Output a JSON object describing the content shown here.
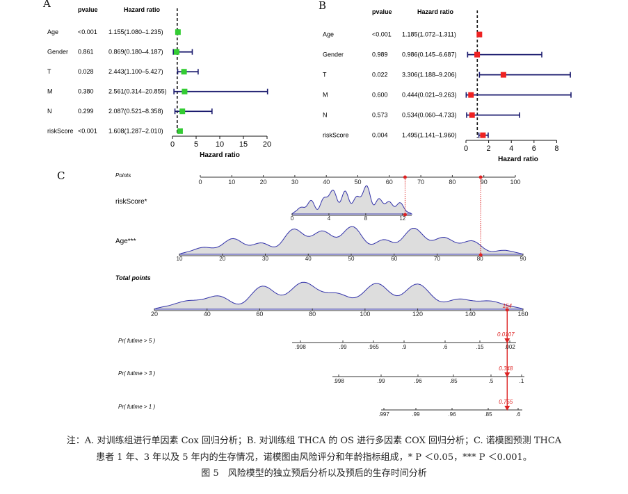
{
  "chart_data": [
    {
      "type": "forest",
      "panel_label": "A",
      "col_pvalue": "pvalue",
      "col_hr": "Hazard ratio",
      "xlabel": "Hazard ratio",
      "xlim": [
        0,
        20
      ],
      "xticks": [
        0,
        5,
        10,
        15,
        20
      ],
      "reference": 1,
      "marker_color": "#33cc33",
      "rows": [
        {
          "label": "Age",
          "p": "<0.001",
          "hr_text": "1.155(1.080–1.235)",
          "hr": 1.155,
          "lo": 1.08,
          "hi": 1.235
        },
        {
          "label": "Gender",
          "p": "0.861",
          "hr_text": "0.869(0.180–4.187)",
          "hr": 0.869,
          "lo": 0.18,
          "hi": 4.187
        },
        {
          "label": "T",
          "p": "0.028",
          "hr_text": "2.443(1.100–5.427)",
          "hr": 2.443,
          "lo": 1.1,
          "hi": 5.427
        },
        {
          "label": "M",
          "p": "0.380",
          "hr_text": "2.561(0.314–20.855)",
          "hr": 2.561,
          "lo": 0.314,
          "hi": 20.855
        },
        {
          "label": "N",
          "p": "0.299",
          "hr_text": "2.087(0.521–8.358)",
          "hr": 2.087,
          "lo": 0.521,
          "hi": 8.358
        },
        {
          "label": "riskScore",
          "p": "<0.001",
          "hr_text": "1.608(1.287–2.010)",
          "hr": 1.608,
          "lo": 1.287,
          "hi": 2.01
        }
      ]
    },
    {
      "type": "forest",
      "panel_label": "B",
      "col_pvalue": "pvalue",
      "col_hr": "Hazard ratio",
      "xlabel": "Hazard ratio",
      "xlim": [
        0,
        9.2
      ],
      "xticks": [
        0,
        2,
        4,
        6,
        8
      ],
      "reference": 1,
      "marker_color": "#ee2222",
      "rows": [
        {
          "label": "Age",
          "p": "<0.001",
          "hr_text": "1.185(1.072–1.311)",
          "hr": 1.185,
          "lo": 1.072,
          "hi": 1.311
        },
        {
          "label": "Gender",
          "p": "0.989",
          "hr_text": "0.986(0.145–6.687)",
          "hr": 0.986,
          "lo": 0.145,
          "hi": 6.687
        },
        {
          "label": "T",
          "p": "0.022",
          "hr_text": "3.306(1.188–9.206)",
          "hr": 3.306,
          "lo": 1.188,
          "hi": 9.206
        },
        {
          "label": "M",
          "p": "0.600",
          "hr_text": "0.444(0.021–9.263)",
          "hr": 0.444,
          "lo": 0.021,
          "hi": 9.263
        },
        {
          "label": "N",
          "p": "0.573",
          "hr_text": "0.534(0.060–4.733)",
          "hr": 0.534,
          "lo": 0.06,
          "hi": 4.733
        },
        {
          "label": "riskScore",
          "p": "0.004",
          "hr_text": "1.495(1.141–1.960)",
          "hr": 1.495,
          "lo": 1.141,
          "hi": 1.96
        }
      ]
    },
    {
      "type": "nomogram",
      "panel_label": "C",
      "fill_color": "#dddddd",
      "line_color": "#3333aa",
      "highlight_color": "#dd2222",
      "points_axis": {
        "label": "Points",
        "range": [
          0,
          100
        ],
        "ticks": [
          0,
          10,
          20,
          30,
          40,
          50,
          60,
          70,
          80,
          90,
          100
        ]
      },
      "variables": [
        {
          "label": "riskScore*",
          "range": [
            0,
            13
          ],
          "ticks": [
            0,
            4,
            8,
            12
          ],
          "selected_value": 12.6,
          "selected_points": 65
        },
        {
          "label": "Age***",
          "range": [
            10,
            90
          ],
          "ticks": [
            10,
            20,
            30,
            40,
            50,
            60,
            70,
            80,
            90
          ],
          "selected_value": 80,
          "selected_points": 89
        }
      ],
      "total_points": {
        "label": "Total points",
        "range": [
          20,
          160
        ],
        "ticks": [
          20,
          40,
          60,
          80,
          100,
          120,
          140,
          160
        ],
        "selected": 154,
        "selected_label": "154"
      },
      "probabilities": [
        {
          "label": "Pr( futime > 5 )",
          "ticks": [
            ".998",
            ".99",
            ".965",
            ".9",
            ".6",
            ".15",
            ".002"
          ],
          "selected_label": "0.0107"
        },
        {
          "label": "Pr( futime > 3 )",
          "ticks": [
            ".998",
            ".99",
            ".96",
            ".85",
            ".5",
            ".1"
          ],
          "selected_label": "0.348"
        },
        {
          "label": "Pr( futime > 1 )",
          "ticks": [
            ".997",
            ".99",
            ".96",
            ".85",
            ".6"
          ],
          "selected_label": "0.755"
        }
      ]
    }
  ],
  "caption": {
    "line1": "注：A. 对训练组进行单因素 Cox 回归分析；B. 对训练组 THCA 的 OS 进行多因素 COX 回归分析；C. 诺模图预测 THCA",
    "line2": "患者 1 年、3 年以及 5 年内的生存情况，诺模图由风险评分和年龄指标组成，* P ＜0.05，*** P ＜0.001。",
    "line3": "图 5　风险模型的独立预后分析以及预后的生存时间分析"
  }
}
